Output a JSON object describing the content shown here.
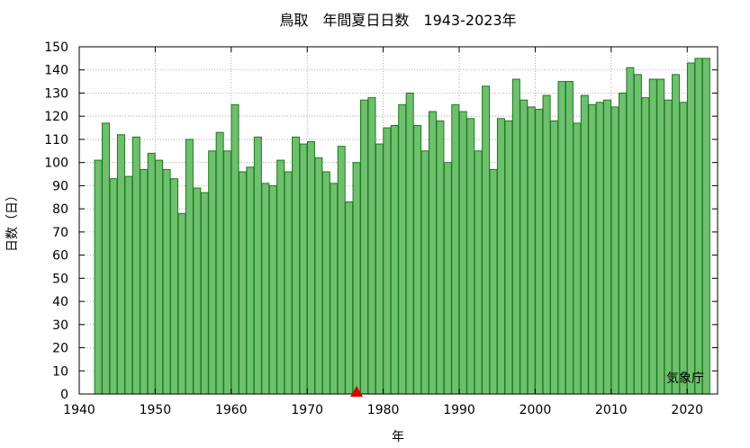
{
  "chart_data": {
    "type": "bar",
    "title": "鳥取　年間夏日日数　1943-2023年",
    "xlabel": "年",
    "ylabel": "日数（日）",
    "credit": "気象庁",
    "xlim": [
      1940,
      2024
    ],
    "ylim": [
      0,
      150
    ],
    "x_ticks": [
      1940,
      1950,
      1960,
      1970,
      1980,
      1990,
      2000,
      2010,
      2020
    ],
    "y_ticks": [
      0,
      10,
      20,
      30,
      40,
      50,
      60,
      70,
      80,
      90,
      100,
      110,
      120,
      130,
      140,
      150
    ],
    "grid": true,
    "marker_year": 1977,
    "marker_color": "#dd0000",
    "bar_fill": "#6ebf6e",
    "bar_stroke": "#1a7a1a",
    "x": [
      1943,
      1944,
      1945,
      1946,
      1947,
      1948,
      1949,
      1950,
      1951,
      1952,
      1953,
      1954,
      1955,
      1956,
      1957,
      1958,
      1959,
      1960,
      1961,
      1962,
      1963,
      1964,
      1965,
      1966,
      1967,
      1968,
      1969,
      1970,
      1971,
      1972,
      1973,
      1974,
      1975,
      1976,
      1977,
      1978,
      1979,
      1980,
      1981,
      1982,
      1983,
      1984,
      1985,
      1986,
      1987,
      1988,
      1989,
      1990,
      1991,
      1992,
      1993,
      1994,
      1995,
      1996,
      1997,
      1998,
      1999,
      2000,
      2001,
      2002,
      2003,
      2004,
      2005,
      2006,
      2007,
      2008,
      2009,
      2010,
      2011,
      2012,
      2013,
      2014,
      2015,
      2016,
      2017,
      2018,
      2019,
      2020,
      2021,
      2022,
      2023
    ],
    "values": [
      101,
      117,
      93,
      112,
      94,
      111,
      97,
      104,
      101,
      97,
      93,
      78,
      110,
      89,
      87,
      105,
      113,
      105,
      125,
      96,
      98,
      111,
      91,
      90,
      101,
      96,
      111,
      108,
      109,
      102,
      96,
      91,
      107,
      83,
      100,
      127,
      128,
      108,
      115,
      116,
      125,
      130,
      116,
      105,
      122,
      118,
      100,
      125,
      122,
      119,
      105,
      133,
      97,
      119,
      118,
      136,
      127,
      124,
      123,
      129,
      118,
      135,
      135,
      117,
      129,
      125,
      126,
      127,
      124,
      130,
      141,
      138,
      128,
      136,
      136,
      127,
      138,
      126,
      143,
      145,
      145
    ]
  }
}
